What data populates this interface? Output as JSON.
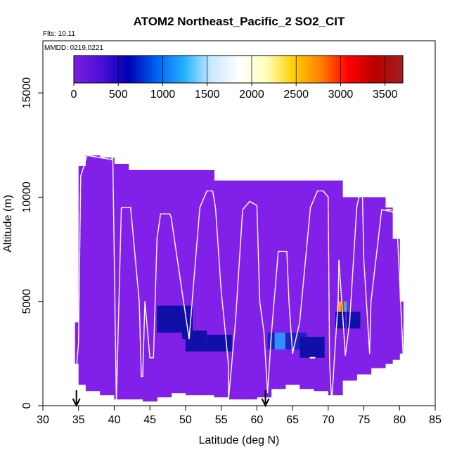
{
  "chart_data": {
    "type": "heatmap",
    "title": "ATOM2 Northeast_Pacific_2 SO2_CIT",
    "annotations": {
      "flights": "Flts: 10,11",
      "dates": "MMDD: 0219,0221"
    },
    "xlabel": "Latitude (deg N)",
    "ylabel": "Altitude (m)",
    "xlim": [
      30,
      85
    ],
    "ylim": [
      0,
      17500
    ],
    "xticks": [
      "30",
      "35",
      "40",
      "45",
      "50",
      "55",
      "60",
      "65",
      "70",
      "75",
      "80",
      "85"
    ],
    "yticks": [
      "0",
      "5000",
      "10000",
      "15000"
    ],
    "colorbar": {
      "min": 0,
      "max": 3700,
      "ticks": [
        "0",
        "500",
        "1000",
        "1500",
        "2000",
        "2500",
        "3000",
        "3500"
      ],
      "colors": [
        "#7b1fe0",
        "#4a10d6",
        "#0000b8",
        "#0060f0",
        "#20b0ff",
        "#c8e8ff",
        "#ffffff",
        "#ffffc0",
        "#ffd000",
        "#ff8000",
        "#ff0000",
        "#b80000",
        "#a02020"
      ]
    },
    "background_color": "#8020e8",
    "cell_colors": {
      "dark_blue": "#1010a8",
      "medium_blue": "#2020c0",
      "light_blue": "#3090ff",
      "cyan": "#20c0e0",
      "red": "#ff2000",
      "orange": "#ffa020",
      "yellow": "#ffe040"
    },
    "footprint": [
      [
        34.5,
        4000,
        2000
      ],
      [
        35,
        11500,
        1000
      ],
      [
        36,
        12000,
        700
      ],
      [
        38,
        11900,
        500
      ],
      [
        40,
        11600,
        300
      ],
      [
        42,
        11300,
        300
      ],
      [
        44,
        11300,
        200
      ],
      [
        46,
        11300,
        400
      ],
      [
        48,
        11300,
        600
      ],
      [
        50,
        11300,
        500
      ],
      [
        52,
        11300,
        500
      ],
      [
        54,
        10800,
        400
      ],
      [
        56,
        10800,
        300
      ],
      [
        58,
        10800,
        300
      ],
      [
        60,
        10800,
        400
      ],
      [
        62,
        10800,
        800
      ],
      [
        64,
        10800,
        1000
      ],
      [
        66,
        10800,
        800
      ],
      [
        68,
        10800,
        700
      ],
      [
        70,
        10800,
        500
      ],
      [
        72,
        10000,
        1200
      ],
      [
        74,
        10000,
        1500
      ],
      [
        76,
        10000,
        1800
      ],
      [
        78,
        9500,
        2000
      ],
      [
        79,
        8000,
        2200
      ],
      [
        80,
        5000,
        2500
      ],
      [
        80.5,
        5000,
        2500
      ]
    ],
    "highlight_cells": [
      {
        "lat": [
          46,
          49.5
        ],
        "alt": [
          3500,
          4800
        ],
        "color": "dark_blue"
      },
      {
        "lat": [
          49.5,
          51
        ],
        "alt": [
          3200,
          4800
        ],
        "color": "dark_blue"
      },
      {
        "lat": [
          50,
          53
        ],
        "alt": [
          2600,
          3600
        ],
        "color": "dark_blue"
      },
      {
        "lat": [
          53,
          56.5
        ],
        "alt": [
          2600,
          3400
        ],
        "color": "dark_blue"
      },
      {
        "lat": [
          61.5,
          62.5
        ],
        "alt": [
          2700,
          3500
        ],
        "color": "medium_blue"
      },
      {
        "lat": [
          62.5,
          64
        ],
        "alt": [
          2700,
          3500
        ],
        "color": "light_blue"
      },
      {
        "lat": [
          64,
          67
        ],
        "alt": [
          2700,
          3500
        ],
        "color": "medium_blue"
      },
      {
        "lat": [
          66,
          69.5
        ],
        "alt": [
          2300,
          3300
        ],
        "color": "dark_blue"
      },
      {
        "lat": [
          71,
          72.4
        ],
        "alt": [
          3700,
          4500
        ],
        "color": "dark_blue"
      },
      {
        "lat": [
          71.4,
          71.8
        ],
        "alt": [
          4500,
          5000
        ],
        "color": "orange"
      },
      {
        "lat": [
          71.8,
          72.2
        ],
        "alt": [
          4500,
          5000
        ],
        "color": "red"
      },
      {
        "lat": [
          72.2,
          72.6
        ],
        "alt": [
          4500,
          5000
        ],
        "color": "cyan"
      },
      {
        "lat": [
          72.6,
          74.5
        ],
        "alt": [
          3700,
          4500
        ],
        "color": "dark_blue"
      }
    ],
    "flight_track": [
      [
        34.5,
        1000
      ],
      [
        35,
        3000
      ],
      [
        35.3,
        11000
      ],
      [
        36.2,
        12000
      ],
      [
        39.6,
        11800
      ],
      [
        39.8,
        12000
      ],
      [
        40.3,
        200
      ],
      [
        41,
        9500
      ],
      [
        42.3,
        9500
      ],
      [
        43.5,
        5000
      ],
      [
        43.8,
        1400
      ],
      [
        44,
        1400
      ],
      [
        44.3,
        5000
      ],
      [
        45,
        2300
      ],
      [
        45.5,
        2300
      ],
      [
        46,
        8000
      ],
      [
        46.5,
        9200
      ],
      [
        47.8,
        9200
      ],
      [
        48,
        9000
      ],
      [
        49.5,
        5500
      ],
      [
        50.5,
        3200
      ],
      [
        52,
        9500
      ],
      [
        53,
        10300
      ],
      [
        53.8,
        10300
      ],
      [
        54.2,
        9500
      ],
      [
        55,
        5500
      ],
      [
        55.5,
        3800
      ],
      [
        56,
        2000
      ],
      [
        56,
        200
      ],
      [
        57,
        4000
      ],
      [
        58,
        9400
      ],
      [
        59,
        9800
      ],
      [
        60,
        9600
      ],
      [
        60.4,
        5000
      ],
      [
        61,
        3500
      ],
      [
        61.5,
        600
      ],
      [
        62,
        3300
      ],
      [
        63,
        7400
      ],
      [
        64.2,
        7400
      ],
      [
        64.5,
        5000
      ],
      [
        65,
        2500
      ],
      [
        66,
        4000
      ],
      [
        67.5,
        9500
      ],
      [
        68.5,
        10300
      ],
      [
        69.3,
        10300
      ],
      [
        70,
        10000
      ],
      [
        70.2,
        2000
      ],
      [
        70.5,
        200
      ],
      [
        71,
        3000
      ],
      [
        71.4,
        5000
      ],
      [
        71.5,
        7000
      ],
      [
        72,
        4500
      ],
      [
        72.4,
        2400
      ],
      [
        73,
        4000
      ],
      [
        74,
        9500
      ],
      [
        74.3,
        10000
      ],
      [
        74.8,
        10100
      ],
      [
        75,
        7000
      ],
      [
        75.8,
        2500
      ],
      [
        76,
        5000
      ],
      [
        77.5,
        9400
      ],
      [
        79,
        9300
      ],
      [
        79.6,
        9000
      ],
      [
        80.5,
        2500
      ]
    ],
    "arrows_at_latitude": [
      34.7,
      61.2
    ],
    "flats": [
      [
        67.8,
        2300
      ],
      [
        78.5,
        9400
      ]
    ]
  }
}
